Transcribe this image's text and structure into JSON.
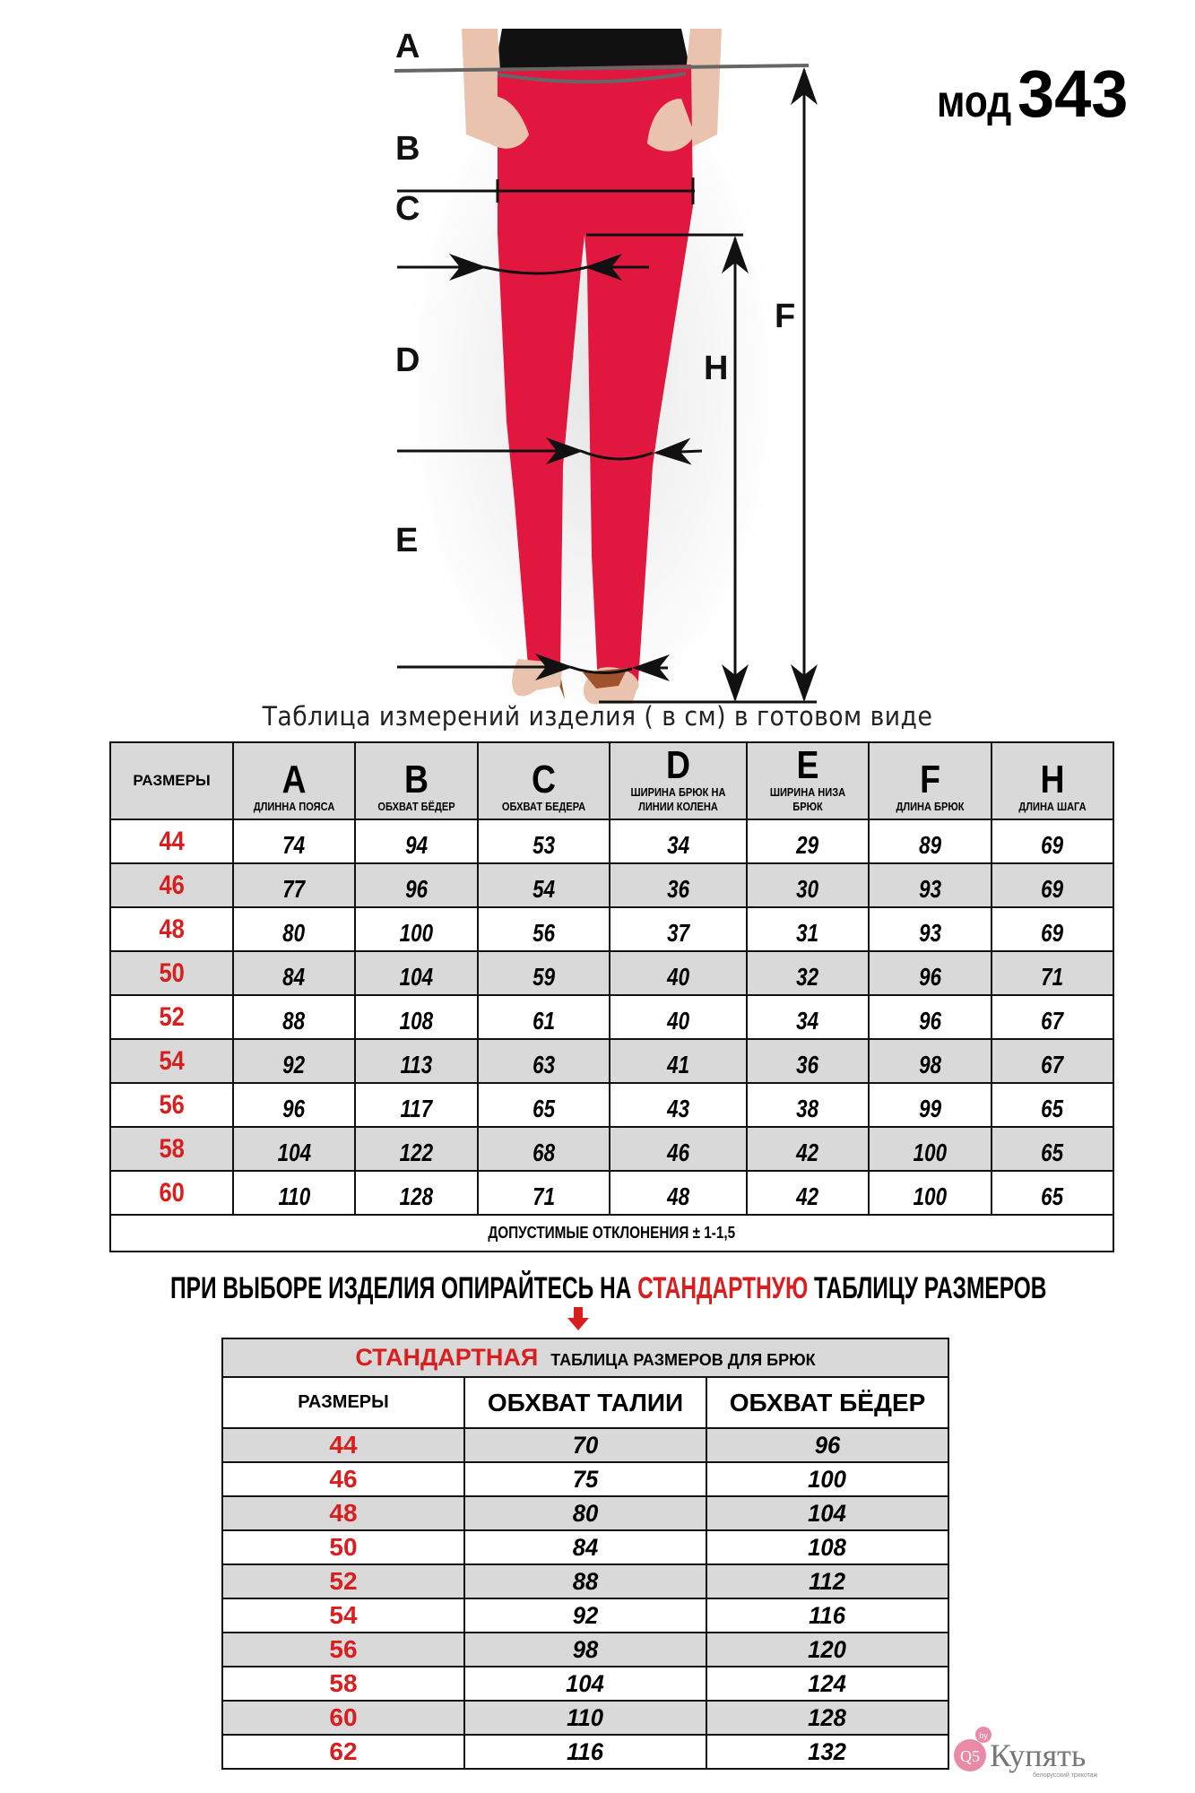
{
  "model": {
    "prefix": "мод",
    "number": "343"
  },
  "figure": {
    "labels": [
      "A",
      "B",
      "C",
      "D",
      "E",
      "F",
      "H"
    ],
    "colors": {
      "pants": "#e2173f",
      "arrows": "#111111",
      "waist_line": "#666666"
    }
  },
  "measurement_table": {
    "title": "Таблица  измерений изделия ( в см) в готовом виде",
    "size_header": "РАЗМЕРЫ",
    "columns": [
      {
        "letter": "A",
        "label": "ДЛИННА ПОЯСА"
      },
      {
        "letter": "B",
        "label": "ОБХВАТ БЁДЕР"
      },
      {
        "letter": "C",
        "label": "ОБХВАТ БЕДЕРА"
      },
      {
        "letter": "D",
        "label": "ШИРИНА БРЮК НА ЛИНИИ КОЛЕНА"
      },
      {
        "letter": "E",
        "label": "ШИРИНА НИЗА БРЮК"
      },
      {
        "letter": "F",
        "label": "ДЛИНА БРЮК"
      },
      {
        "letter": "H",
        "label": "ДЛИНА ШАГА"
      }
    ],
    "rows": [
      {
        "size": "44",
        "values": [
          "74",
          "94",
          "53",
          "34",
          "29",
          "89",
          "69"
        ]
      },
      {
        "size": "46",
        "values": [
          "77",
          "96",
          "54",
          "36",
          "30",
          "93",
          "69"
        ]
      },
      {
        "size": "48",
        "values": [
          "80",
          "100",
          "56",
          "37",
          "31",
          "93",
          "69"
        ]
      },
      {
        "size": "50",
        "values": [
          "84",
          "104",
          "59",
          "40",
          "32",
          "96",
          "71"
        ]
      },
      {
        "size": "52",
        "values": [
          "88",
          "108",
          "61",
          "40",
          "34",
          "96",
          "67"
        ]
      },
      {
        "size": "54",
        "values": [
          "92",
          "113",
          "63",
          "41",
          "36",
          "98",
          "67"
        ]
      },
      {
        "size": "56",
        "values": [
          "96",
          "117",
          "65",
          "43",
          "38",
          "99",
          "65"
        ]
      },
      {
        "size": "58",
        "values": [
          "104",
          "122",
          "68",
          "46",
          "42",
          "100",
          "65"
        ]
      },
      {
        "size": "60",
        "values": [
          "110",
          "128",
          "71",
          "48",
          "42",
          "100",
          "65"
        ]
      }
    ],
    "tolerance": "ДОПУСТИМЫЕ ОТКЛОНЕНИЯ  ±  1-1,5"
  },
  "notice": {
    "before": "ПРИ ВЫБОРЕ ИЗДЕЛИЯ ОПИРАЙТЕСЬ НА ",
    "highlight": "СТАНДАРТНУЮ",
    "after": " ТАБЛИЦУ РАЗМЕРОВ"
  },
  "standard_table": {
    "title_highlight": "СТАНДАРТНАЯ",
    "title_rest": "ТАБЛИЦА РАЗМЕРОВ ДЛЯ БРЮК",
    "headers": [
      "РАЗМЕРЫ",
      "ОБХВАТ ТАЛИИ",
      "ОБХВАТ БЁДЕР"
    ],
    "rows": [
      [
        "44",
        "70",
        "96"
      ],
      [
        "46",
        "75",
        "100"
      ],
      [
        "48",
        "80",
        "104"
      ],
      [
        "50",
        "84",
        "108"
      ],
      [
        "52",
        "88",
        "112"
      ],
      [
        "54",
        "92",
        "116"
      ],
      [
        "56",
        "98",
        "120"
      ],
      [
        "58",
        "104",
        "124"
      ],
      [
        "60",
        "110",
        "128"
      ],
      [
        "62",
        "116",
        "132"
      ]
    ]
  },
  "logo": {
    "badge": "Q5",
    "tld": "by",
    "name": "Купять",
    "tagline": "белорусский трикотаж"
  },
  "colors": {
    "accent_red": "#d81e1e",
    "header_gray": "#d9d9d9",
    "logo_pink": "#e98aa6"
  }
}
